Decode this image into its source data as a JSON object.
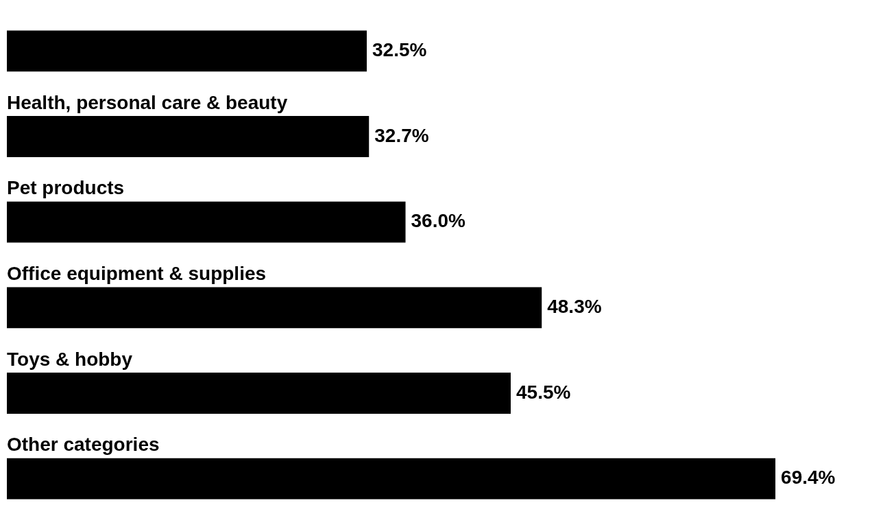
{
  "chart_data": {
    "type": "bar",
    "orientation": "horizontal",
    "categories": [
      null,
      "Health, personal care & beauty",
      "Pet products",
      "Office equipment & supplies",
      "Toys & hobby",
      "Other categories"
    ],
    "values": [
      32.5,
      32.7,
      36.0,
      48.3,
      45.5,
      69.4
    ],
    "value_labels": [
      "32.5%",
      "32.7%",
      "36.0%",
      "48.3%",
      "45.5%",
      "69.4%"
    ],
    "color": "#000000",
    "legend": false
  }
}
